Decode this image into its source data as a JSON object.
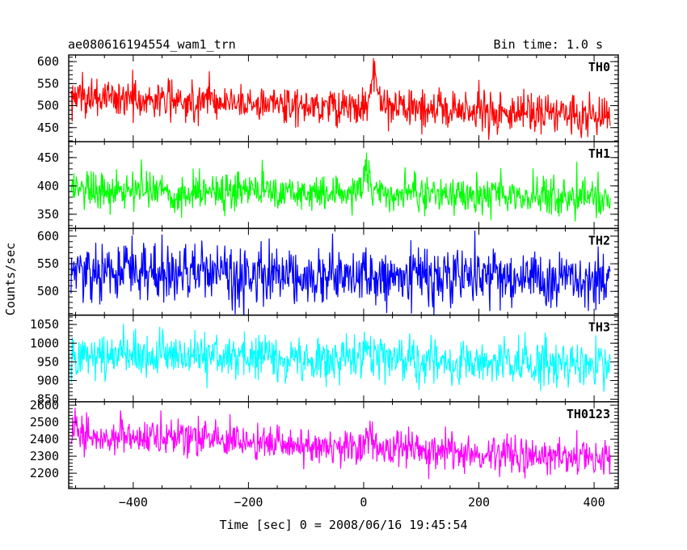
{
  "chart_data": {
    "type": "line",
    "title": "ae080616194554_wam1_trn",
    "subtitle": "Bin time: 1.0 s",
    "xlabel": "Time [sec] 0 = 2008/06/16 19:45:54",
    "ylabel": "Counts/sec",
    "xlim": [
      -512,
      442
    ],
    "x_data_range": [
      -508,
      428
    ],
    "x_step": 1,
    "x_ticks": [
      -400,
      -200,
      0,
      200,
      400
    ],
    "x_tick_labels": [
      "−400",
      "−200",
      "0",
      "200",
      "400"
    ],
    "grid": false,
    "panels": [
      {
        "name": "TH0",
        "color": "#ff0000",
        "ylim": [
          418,
          615
        ],
        "y_ticks": [
          450,
          500,
          550,
          600
        ],
        "mean_start": 520,
        "mean_end": 478,
        "noise_sd": 22,
        "features": [
          {
            "x": 18,
            "height": 70,
            "width": 8
          },
          {
            "x": -270,
            "height": 30,
            "width": 4
          }
        ]
      },
      {
        "name": "TH1",
        "color": "#00ff00",
        "ylim": [
          325,
          478
        ],
        "y_ticks": [
          350,
          400,
          450
        ],
        "mean_start": 395,
        "mean_end": 380,
        "noise_sd": 17,
        "features": [
          {
            "x": 5,
            "height": 45,
            "width": 7
          }
        ]
      },
      {
        "name": "TH2",
        "color": "#0000ff",
        "ylim": [
          457,
          614
        ],
        "y_ticks": [
          500,
          550,
          600
        ],
        "mean_start": 535,
        "mean_end": 522,
        "noise_sd": 26,
        "features": []
      },
      {
        "name": "TH3",
        "color": "#00ffff",
        "ylim": [
          843,
          1075
        ],
        "y_ticks": [
          850,
          900,
          950,
          1000,
          1050
        ],
        "mean_start": 975,
        "mean_end": 942,
        "noise_sd": 30,
        "features": [
          {
            "x": 5,
            "height": 50,
            "width": 6
          }
        ]
      },
      {
        "name": "TH0123",
        "color": "#ff00ff",
        "ylim": [
          2110,
          2620
        ],
        "y_ticks": [
          2200,
          2300,
          2400,
          2500,
          2600
        ],
        "mean_start": 2430,
        "mean_end": 2290,
        "noise_sd": 55,
        "features": [
          {
            "x": 10,
            "height": 90,
            "width": 8
          }
        ]
      }
    ]
  }
}
